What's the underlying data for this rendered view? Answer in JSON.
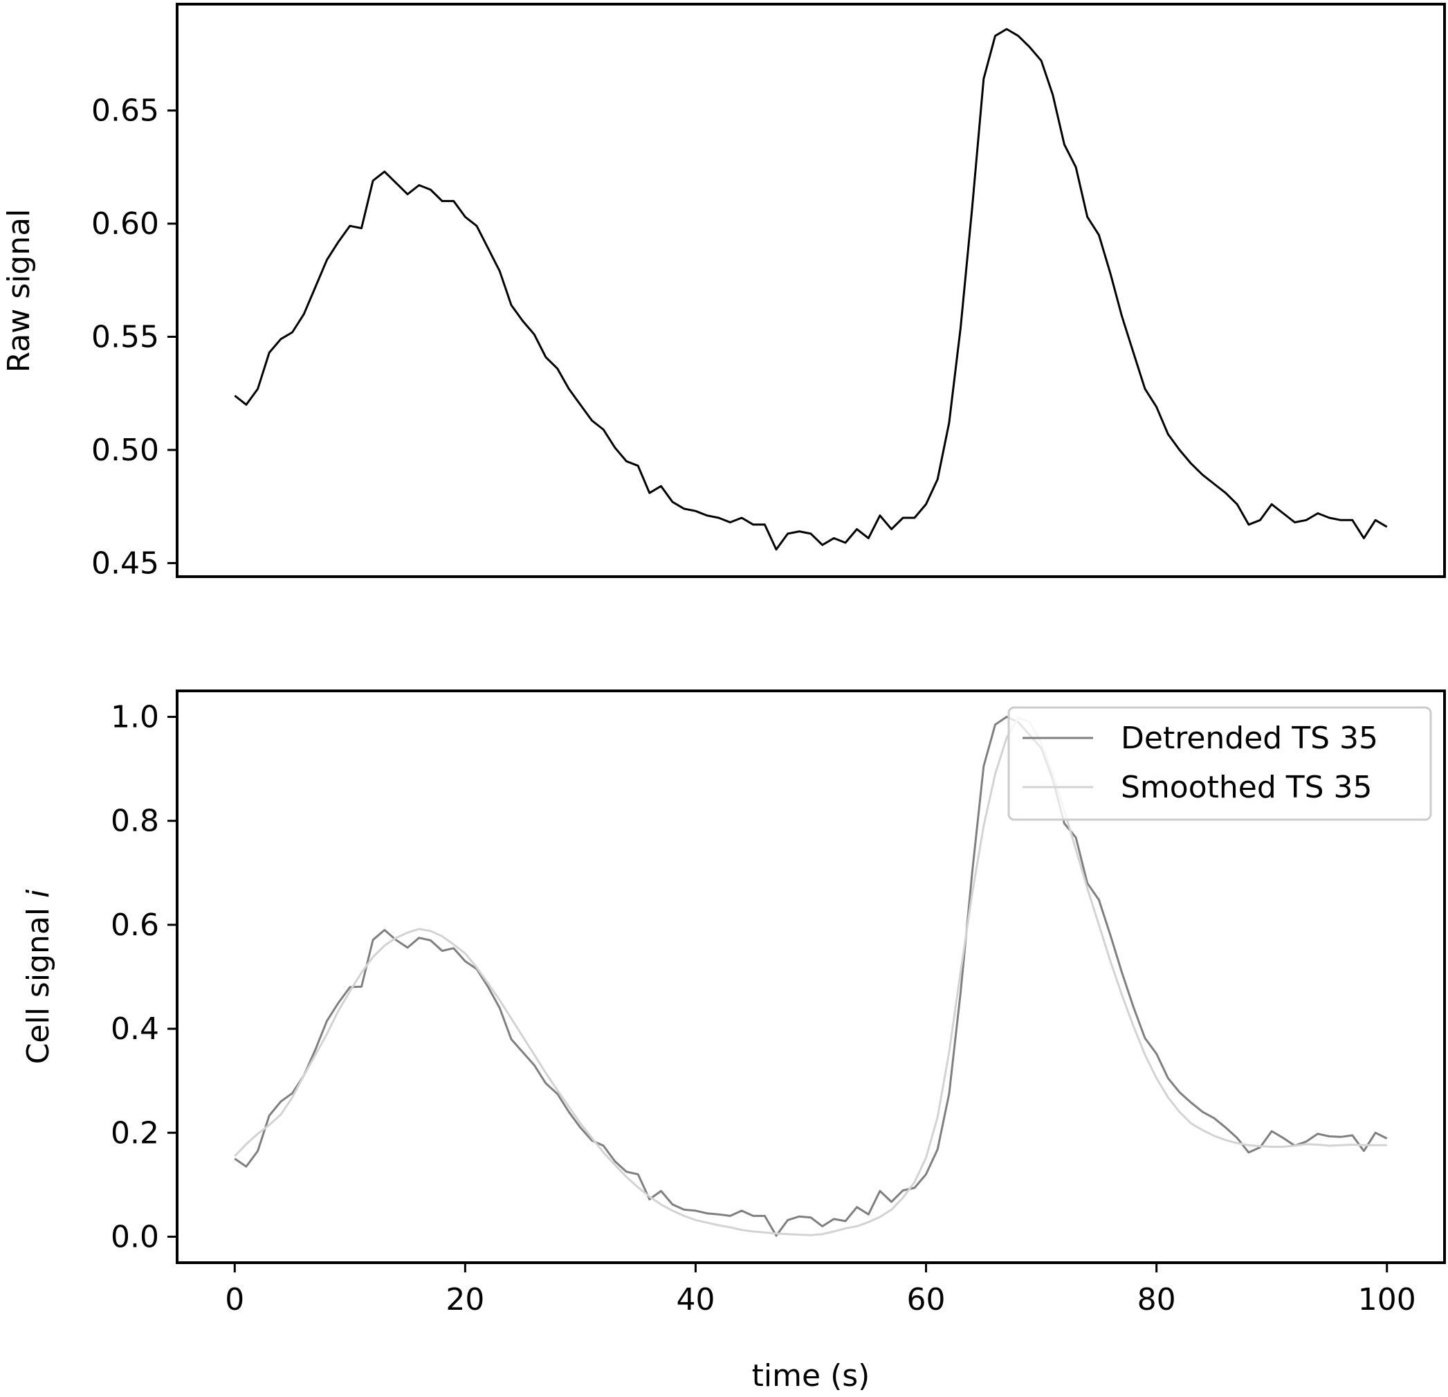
{
  "chart_data": [
    {
      "type": "line",
      "ylabel": "Raw signal",
      "xlabel": "",
      "xlim": [
        -5,
        105
      ],
      "ylim": [
        0.444,
        0.697
      ],
      "xticks": [
        "0",
        "20",
        "40",
        "60",
        "80",
        "100"
      ],
      "yticks": [
        "0.45",
        "0.50",
        "0.55",
        "0.60",
        "0.65"
      ],
      "series": [
        {
          "color": "#000000",
          "x": [
            0,
            1,
            2,
            3,
            4,
            5,
            6,
            7,
            8,
            9,
            10,
            11,
            12,
            13,
            14,
            15,
            16,
            17,
            18,
            19,
            20,
            21,
            22,
            23,
            24,
            25,
            26,
            27,
            28,
            29,
            30,
            31,
            32,
            33,
            34,
            35,
            36,
            37,
            38,
            39,
            40,
            41,
            42,
            43,
            44,
            45,
            46,
            47,
            48,
            49,
            50,
            51,
            52,
            53,
            54,
            55,
            56,
            57,
            58,
            59,
            60,
            61,
            62,
            63,
            64,
            65,
            66,
            67,
            68,
            69,
            70,
            71,
            72,
            73,
            74,
            75,
            76,
            77,
            78,
            79,
            80,
            81,
            82,
            83,
            84,
            85,
            86,
            87,
            88,
            89,
            90,
            91,
            92,
            93,
            94,
            95,
            96,
            97,
            98,
            99,
            100
          ],
          "values": [
            0.524,
            0.52,
            0.527,
            0.543,
            0.549,
            0.552,
            0.56,
            0.572,
            0.584,
            0.592,
            0.599,
            0.598,
            0.619,
            0.623,
            0.618,
            0.613,
            0.617,
            0.615,
            0.61,
            0.61,
            0.603,
            0.599,
            0.589,
            0.579,
            0.564,
            0.557,
            0.551,
            0.541,
            0.536,
            0.527,
            0.52,
            0.513,
            0.509,
            0.501,
            0.495,
            0.493,
            0.481,
            0.484,
            0.477,
            0.474,
            0.473,
            0.471,
            0.47,
            0.468,
            0.47,
            0.467,
            0.467,
            0.456,
            0.463,
            0.464,
            0.463,
            0.458,
            0.461,
            0.459,
            0.465,
            0.461,
            0.471,
            0.465,
            0.47,
            0.47,
            0.476,
            0.487,
            0.512,
            0.554,
            0.607,
            0.664,
            0.683,
            0.686,
            0.683,
            0.678,
            0.672,
            0.657,
            0.635,
            0.625,
            0.603,
            0.595,
            0.578,
            0.559,
            0.543,
            0.527,
            0.519,
            0.507,
            0.5,
            0.494,
            0.489,
            0.485,
            0.481,
            0.476,
            0.467,
            0.469,
            0.476,
            0.472,
            0.468,
            0.469,
            0.472,
            0.47,
            0.469,
            0.469,
            0.461,
            0.469,
            0.466
          ]
        }
      ]
    },
    {
      "type": "line",
      "ylabel": "Cell signal i",
      "ylabel_main": "Cell signal ",
      "ylabel_italic": "i",
      "xlabel": "time (s)",
      "xlim": [
        -5,
        105
      ],
      "ylim": [
        -0.05,
        1.05
      ],
      "xticks": [
        "0",
        "20",
        "40",
        "60",
        "80",
        "100"
      ],
      "yticks": [
        "0.0",
        "0.2",
        "0.4",
        "0.6",
        "0.8",
        "1.0"
      ],
      "legend_position": "upper-right",
      "series": [
        {
          "name": "Detrended TS 35",
          "color": "#7f7f7f",
          "x": [
            0,
            1,
            2,
            3,
            4,
            5,
            6,
            7,
            8,
            9,
            10,
            11,
            12,
            13,
            14,
            15,
            16,
            17,
            18,
            19,
            20,
            21,
            22,
            23,
            24,
            25,
            26,
            27,
            28,
            29,
            30,
            31,
            32,
            33,
            34,
            35,
            36,
            37,
            38,
            39,
            40,
            41,
            42,
            43,
            44,
            45,
            46,
            47,
            48,
            49,
            50,
            51,
            52,
            53,
            54,
            55,
            56,
            57,
            58,
            59,
            60,
            61,
            62,
            63,
            64,
            65,
            66,
            67,
            68,
            69,
            70,
            71,
            72,
            73,
            74,
            75,
            76,
            77,
            78,
            79,
            80,
            81,
            82,
            83,
            84,
            85,
            86,
            87,
            88,
            89,
            90,
            91,
            92,
            93,
            94,
            95,
            96,
            97,
            98,
            99,
            100
          ],
          "values": [
            0.15,
            0.135,
            0.165,
            0.233,
            0.26,
            0.276,
            0.31,
            0.36,
            0.415,
            0.45,
            0.48,
            0.481,
            0.571,
            0.59,
            0.571,
            0.556,
            0.575,
            0.57,
            0.55,
            0.555,
            0.53,
            0.515,
            0.48,
            0.44,
            0.38,
            0.355,
            0.33,
            0.295,
            0.275,
            0.24,
            0.21,
            0.185,
            0.175,
            0.145,
            0.125,
            0.12,
            0.072,
            0.088,
            0.062,
            0.052,
            0.05,
            0.045,
            0.043,
            0.04,
            0.05,
            0.04,
            0.04,
            0.002,
            0.032,
            0.039,
            0.037,
            0.02,
            0.034,
            0.03,
            0.057,
            0.043,
            0.088,
            0.067,
            0.089,
            0.094,
            0.12,
            0.168,
            0.275,
            0.47,
            0.7,
            0.905,
            0.985,
            1.0,
            0.99,
            0.965,
            0.94,
            0.88,
            0.795,
            0.768,
            0.68,
            0.648,
            0.58,
            0.508,
            0.442,
            0.382,
            0.352,
            0.305,
            0.278,
            0.258,
            0.24,
            0.228,
            0.21,
            0.19,
            0.162,
            0.172,
            0.203,
            0.19,
            0.175,
            0.183,
            0.198,
            0.193,
            0.192,
            0.195,
            0.165,
            0.2,
            0.189
          ]
        },
        {
          "name": "Smoothed TS 35",
          "color": "#d3d3d3",
          "x": [
            0,
            1,
            2,
            3,
            4,
            5,
            6,
            7,
            8,
            9,
            10,
            11,
            12,
            13,
            14,
            15,
            16,
            17,
            18,
            19,
            20,
            21,
            22,
            23,
            24,
            25,
            26,
            27,
            28,
            29,
            30,
            31,
            32,
            33,
            34,
            35,
            36,
            37,
            38,
            39,
            40,
            41,
            42,
            43,
            44,
            45,
            46,
            47,
            48,
            49,
            50,
            51,
            52,
            53,
            54,
            55,
            56,
            57,
            58,
            59,
            60,
            61,
            62,
            63,
            64,
            65,
            66,
            67,
            68,
            69,
            70,
            71,
            72,
            73,
            74,
            75,
            76,
            77,
            78,
            79,
            80,
            81,
            82,
            83,
            84,
            85,
            86,
            87,
            88,
            89,
            90,
            91,
            92,
            93,
            94,
            95,
            96,
            97,
            98,
            99,
            100
          ],
          "values": [
            0.155,
            0.178,
            0.198,
            0.215,
            0.235,
            0.268,
            0.31,
            0.35,
            0.39,
            0.435,
            0.472,
            0.508,
            0.538,
            0.56,
            0.575,
            0.585,
            0.592,
            0.588,
            0.578,
            0.562,
            0.545,
            0.518,
            0.487,
            0.455,
            0.42,
            0.385,
            0.35,
            0.315,
            0.282,
            0.25,
            0.218,
            0.19,
            0.162,
            0.138,
            0.115,
            0.095,
            0.077,
            0.062,
            0.05,
            0.04,
            0.032,
            0.027,
            0.022,
            0.018,
            0.013,
            0.01,
            0.008,
            0.006,
            0.005,
            0.004,
            0.003,
            0.005,
            0.01,
            0.016,
            0.02,
            0.028,
            0.038,
            0.052,
            0.075,
            0.105,
            0.152,
            0.23,
            0.355,
            0.51,
            0.66,
            0.79,
            0.89,
            0.96,
            0.998,
            0.99,
            0.95,
            0.89,
            0.82,
            0.745,
            0.67,
            0.6,
            0.53,
            0.465,
            0.405,
            0.35,
            0.305,
            0.268,
            0.24,
            0.218,
            0.205,
            0.194,
            0.186,
            0.18,
            0.176,
            0.174,
            0.173,
            0.173,
            0.175,
            0.178,
            0.177,
            0.175,
            0.176,
            0.177,
            0.176,
            0.176,
            0.176
          ]
        }
      ]
    }
  ]
}
